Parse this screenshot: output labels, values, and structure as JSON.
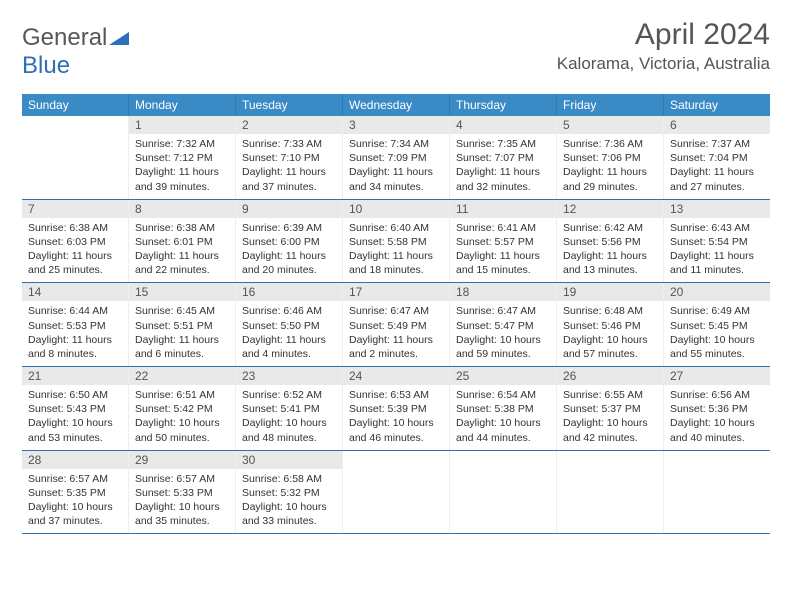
{
  "brand": {
    "name_part1": "General",
    "name_part2": "Blue"
  },
  "title": "April 2024",
  "location": "Kalorama, Victoria, Australia",
  "colors": {
    "header_bg": "#3a8ac6",
    "accent": "#2e6fb8",
    "daynum_bg": "#e9e9e9",
    "text": "#333333",
    "muted": "#575757",
    "white": "#ffffff"
  },
  "typography": {
    "title_size_pt": 22,
    "location_size_pt": 13,
    "dow_size_pt": 9,
    "cell_size_pt": 8
  },
  "days_of_week": [
    "Sunday",
    "Monday",
    "Tuesday",
    "Wednesday",
    "Thursday",
    "Friday",
    "Saturday"
  ],
  "weeks": [
    [
      null,
      {
        "n": "1",
        "sr": "7:32 AM",
        "ss": "7:12 PM",
        "dl": "11 hours and 39 minutes."
      },
      {
        "n": "2",
        "sr": "7:33 AM",
        "ss": "7:10 PM",
        "dl": "11 hours and 37 minutes."
      },
      {
        "n": "3",
        "sr": "7:34 AM",
        "ss": "7:09 PM",
        "dl": "11 hours and 34 minutes."
      },
      {
        "n": "4",
        "sr": "7:35 AM",
        "ss": "7:07 PM",
        "dl": "11 hours and 32 minutes."
      },
      {
        "n": "5",
        "sr": "7:36 AM",
        "ss": "7:06 PM",
        "dl": "11 hours and 29 minutes."
      },
      {
        "n": "6",
        "sr": "7:37 AM",
        "ss": "7:04 PM",
        "dl": "11 hours and 27 minutes."
      }
    ],
    [
      {
        "n": "7",
        "sr": "6:38 AM",
        "ss": "6:03 PM",
        "dl": "11 hours and 25 minutes."
      },
      {
        "n": "8",
        "sr": "6:38 AM",
        "ss": "6:01 PM",
        "dl": "11 hours and 22 minutes."
      },
      {
        "n": "9",
        "sr": "6:39 AM",
        "ss": "6:00 PM",
        "dl": "11 hours and 20 minutes."
      },
      {
        "n": "10",
        "sr": "6:40 AM",
        "ss": "5:58 PM",
        "dl": "11 hours and 18 minutes."
      },
      {
        "n": "11",
        "sr": "6:41 AM",
        "ss": "5:57 PM",
        "dl": "11 hours and 15 minutes."
      },
      {
        "n": "12",
        "sr": "6:42 AM",
        "ss": "5:56 PM",
        "dl": "11 hours and 13 minutes."
      },
      {
        "n": "13",
        "sr": "6:43 AM",
        "ss": "5:54 PM",
        "dl": "11 hours and 11 minutes."
      }
    ],
    [
      {
        "n": "14",
        "sr": "6:44 AM",
        "ss": "5:53 PM",
        "dl": "11 hours and 8 minutes."
      },
      {
        "n": "15",
        "sr": "6:45 AM",
        "ss": "5:51 PM",
        "dl": "11 hours and 6 minutes."
      },
      {
        "n": "16",
        "sr": "6:46 AM",
        "ss": "5:50 PM",
        "dl": "11 hours and 4 minutes."
      },
      {
        "n": "17",
        "sr": "6:47 AM",
        "ss": "5:49 PM",
        "dl": "11 hours and 2 minutes."
      },
      {
        "n": "18",
        "sr": "6:47 AM",
        "ss": "5:47 PM",
        "dl": "10 hours and 59 minutes."
      },
      {
        "n": "19",
        "sr": "6:48 AM",
        "ss": "5:46 PM",
        "dl": "10 hours and 57 minutes."
      },
      {
        "n": "20",
        "sr": "6:49 AM",
        "ss": "5:45 PM",
        "dl": "10 hours and 55 minutes."
      }
    ],
    [
      {
        "n": "21",
        "sr": "6:50 AM",
        "ss": "5:43 PM",
        "dl": "10 hours and 53 minutes."
      },
      {
        "n": "22",
        "sr": "6:51 AM",
        "ss": "5:42 PM",
        "dl": "10 hours and 50 minutes."
      },
      {
        "n": "23",
        "sr": "6:52 AM",
        "ss": "5:41 PM",
        "dl": "10 hours and 48 minutes."
      },
      {
        "n": "24",
        "sr": "6:53 AM",
        "ss": "5:39 PM",
        "dl": "10 hours and 46 minutes."
      },
      {
        "n": "25",
        "sr": "6:54 AM",
        "ss": "5:38 PM",
        "dl": "10 hours and 44 minutes."
      },
      {
        "n": "26",
        "sr": "6:55 AM",
        "ss": "5:37 PM",
        "dl": "10 hours and 42 minutes."
      },
      {
        "n": "27",
        "sr": "6:56 AM",
        "ss": "5:36 PM",
        "dl": "10 hours and 40 minutes."
      }
    ],
    [
      {
        "n": "28",
        "sr": "6:57 AM",
        "ss": "5:35 PM",
        "dl": "10 hours and 37 minutes."
      },
      {
        "n": "29",
        "sr": "6:57 AM",
        "ss": "5:33 PM",
        "dl": "10 hours and 35 minutes."
      },
      {
        "n": "30",
        "sr": "6:58 AM",
        "ss": "5:32 PM",
        "dl": "10 hours and 33 minutes."
      },
      null,
      null,
      null,
      null
    ]
  ],
  "labels": {
    "sunrise": "Sunrise:",
    "sunset": "Sunset:",
    "daylight": "Daylight:"
  }
}
